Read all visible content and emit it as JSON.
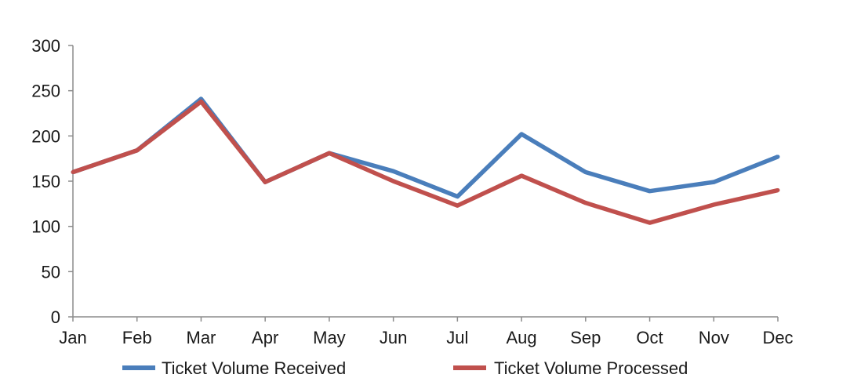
{
  "chart_data": {
    "type": "line",
    "title": "",
    "xlabel": "",
    "ylabel": "",
    "categories": [
      "Jan",
      "Feb",
      "Mar",
      "Apr",
      "May",
      "Jun",
      "Jul",
      "Aug",
      "Sep",
      "Oct",
      "Nov",
      "Dec"
    ],
    "ylim": [
      0,
      300
    ],
    "yticks": [
      0,
      50,
      100,
      150,
      200,
      250,
      300
    ],
    "grid": false,
    "legend_position": "bottom",
    "series": [
      {
        "name": "Ticket Volume Received",
        "color": "#4a7ebb",
        "values": [
          160,
          184,
          241,
          149,
          181,
          161,
          133,
          202,
          160,
          139,
          149,
          177
        ]
      },
      {
        "name": "Ticket Volume Processed",
        "color": "#c0504d",
        "values": [
          160,
          184,
          238,
          149,
          181,
          150,
          123,
          156,
          126,
          104,
          124,
          140
        ]
      }
    ]
  }
}
